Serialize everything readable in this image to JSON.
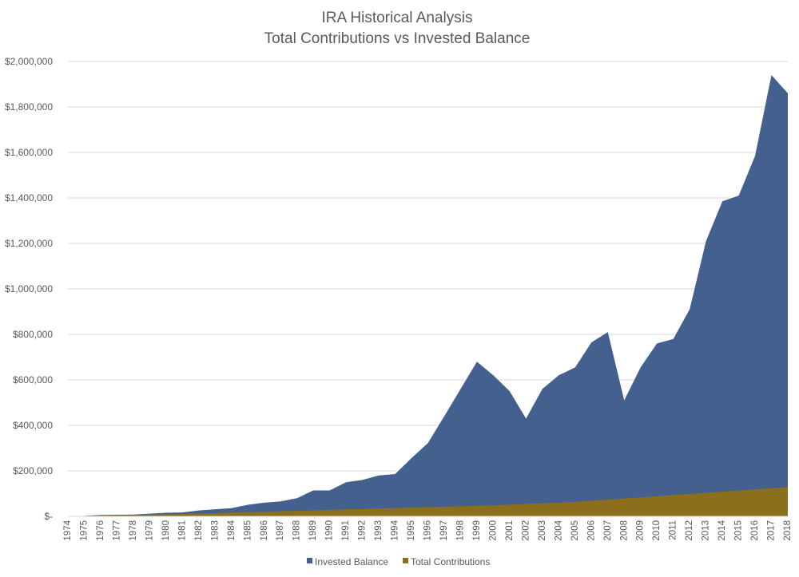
{
  "chart_data": {
    "type": "area",
    "title": "IRA Historical Analysis",
    "subtitle": "Total Contributions vs Invested Balance",
    "xlabel": "",
    "ylabel": "",
    "ylim": [
      0,
      2000000
    ],
    "yticks": [
      0,
      200000,
      400000,
      600000,
      800000,
      1000000,
      1200000,
      1400000,
      1600000,
      1800000,
      2000000
    ],
    "ytick_labels": [
      "$-",
      "$200,000",
      "$400,000",
      "$600,000",
      "$800,000",
      "$1,000,000",
      "$1,200,000",
      "$1,400,000",
      "$1,600,000",
      "$1,800,000",
      "$2,000,000"
    ],
    "grid": true,
    "legend_position": "bottom",
    "x": [
      "1974",
      "1975",
      "1976",
      "1977",
      "1978",
      "1979",
      "1980",
      "1981",
      "1982",
      "1983",
      "1984",
      "1985",
      "1986",
      "1987",
      "1988",
      "1989",
      "1990",
      "1991",
      "1992",
      "1993",
      "1994",
      "1995",
      "1996",
      "1997",
      "1998",
      "1999",
      "2000",
      "2001",
      "2002",
      "2003",
      "2004",
      "2005",
      "2006",
      "2007",
      "2008",
      "2009",
      "2010",
      "2011",
      "2012",
      "2013",
      "2014",
      "2015",
      "2016",
      "2017",
      "2018"
    ],
    "series": [
      {
        "name": "Invested Balance",
        "color": "#44608e",
        "values": [
          0,
          2000,
          6000,
          7000,
          8000,
          12000,
          16000,
          17000,
          26000,
          31000,
          36000,
          51000,
          60000,
          66000,
          80000,
          114000,
          114000,
          150000,
          160000,
          180000,
          186000,
          256000,
          322000,
          440000,
          560000,
          680000,
          620000,
          550000,
          430000,
          560000,
          620000,
          655000,
          765000,
          810000,
          510000,
          655000,
          760000,
          780000,
          910000,
          1210000,
          1385000,
          1410000,
          1585000,
          1940000,
          1860000
        ]
      },
      {
        "name": "Total Contributions",
        "color": "#8b6f1c",
        "values": [
          0,
          1500,
          3000,
          4500,
          6000,
          7500,
          9000,
          10500,
          12500,
          14500,
          16500,
          18500,
          20500,
          22500,
          24500,
          26500,
          28500,
          30500,
          32500,
          34500,
          36500,
          38500,
          40500,
          42500,
          44500,
          46500,
          48500,
          51500,
          54500,
          57500,
          60500,
          63500,
          68500,
          73500,
          78500,
          83500,
          88500,
          93500,
          98500,
          103500,
          108500,
          113500,
          118500,
          123500,
          129000
        ]
      }
    ]
  }
}
